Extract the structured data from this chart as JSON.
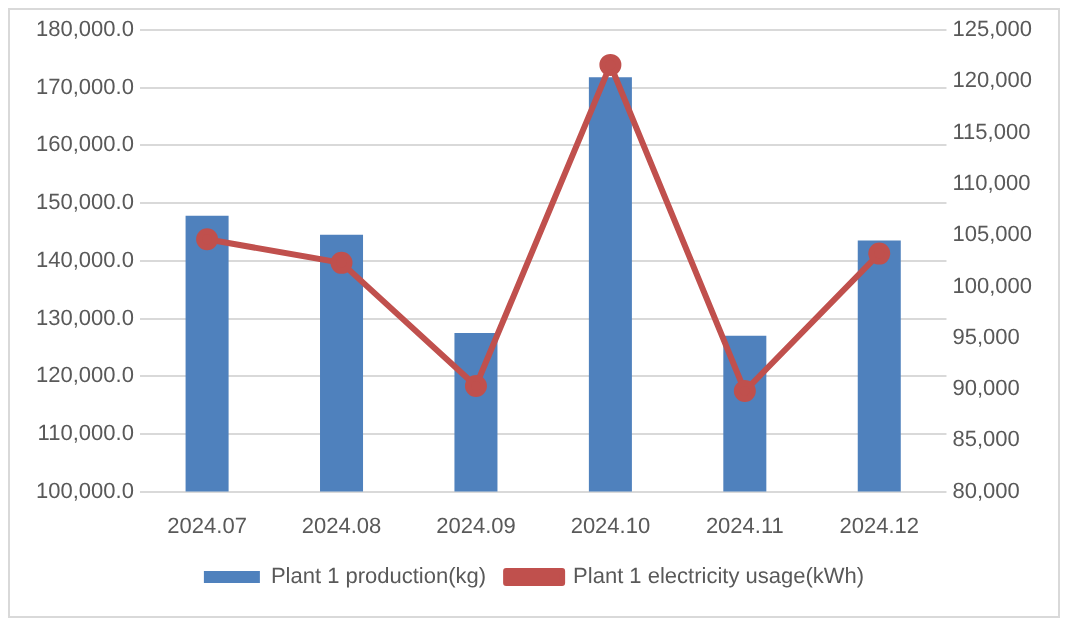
{
  "chart_data": {
    "type": "bar",
    "categories": [
      "2024.07",
      "2024.08",
      "2024.09",
      "2024.10",
      "2024.11",
      "2024.12"
    ],
    "series": [
      {
        "name": "Plant 1 production(kg)",
        "color": "#4f81bd",
        "values": [
          147800,
          144500,
          127500,
          171800,
          127000,
          143500
        ]
      },
      {
        "name": "Plant 1 electricity usage(kWh)",
        "type": "line",
        "axis": "y2",
        "color": "#c0504d",
        "values": [
          104600,
          102300,
          90300,
          121600,
          89800,
          103200
        ]
      }
    ],
    "ylim": [
      100000,
      180000
    ],
    "yticks": [
      {
        "value": 100000,
        "label": "100,000.0"
      },
      {
        "value": 110000,
        "label": "110,000.0"
      },
      {
        "value": 120000,
        "label": "120,000.0"
      },
      {
        "value": 130000,
        "label": "130,000.0"
      },
      {
        "value": 140000,
        "label": "140,000.0"
      },
      {
        "value": 150000,
        "label": "150,000.0"
      },
      {
        "value": 160000,
        "label": "160,000.0"
      },
      {
        "value": 170000,
        "label": "170,000.0"
      },
      {
        "value": 180000,
        "label": "180,000.0"
      }
    ],
    "y2lim": [
      80000,
      125000
    ],
    "y2ticks": [
      {
        "value": 80000,
        "label": "80,000"
      },
      {
        "value": 85000,
        "label": "85,000"
      },
      {
        "value": 90000,
        "label": "90,000"
      },
      {
        "value": 95000,
        "label": "95,000"
      },
      {
        "value": 100000,
        "label": "100,000"
      },
      {
        "value": 105000,
        "label": "105,000"
      },
      {
        "value": 110000,
        "label": "110,000"
      },
      {
        "value": 115000,
        "label": "115,000"
      },
      {
        "value": 120000,
        "label": "120,000"
      },
      {
        "value": 125000,
        "label": "125,000"
      }
    ],
    "grid": "y",
    "legend": "bottom",
    "marker": "circle",
    "line_style": "solid"
  }
}
